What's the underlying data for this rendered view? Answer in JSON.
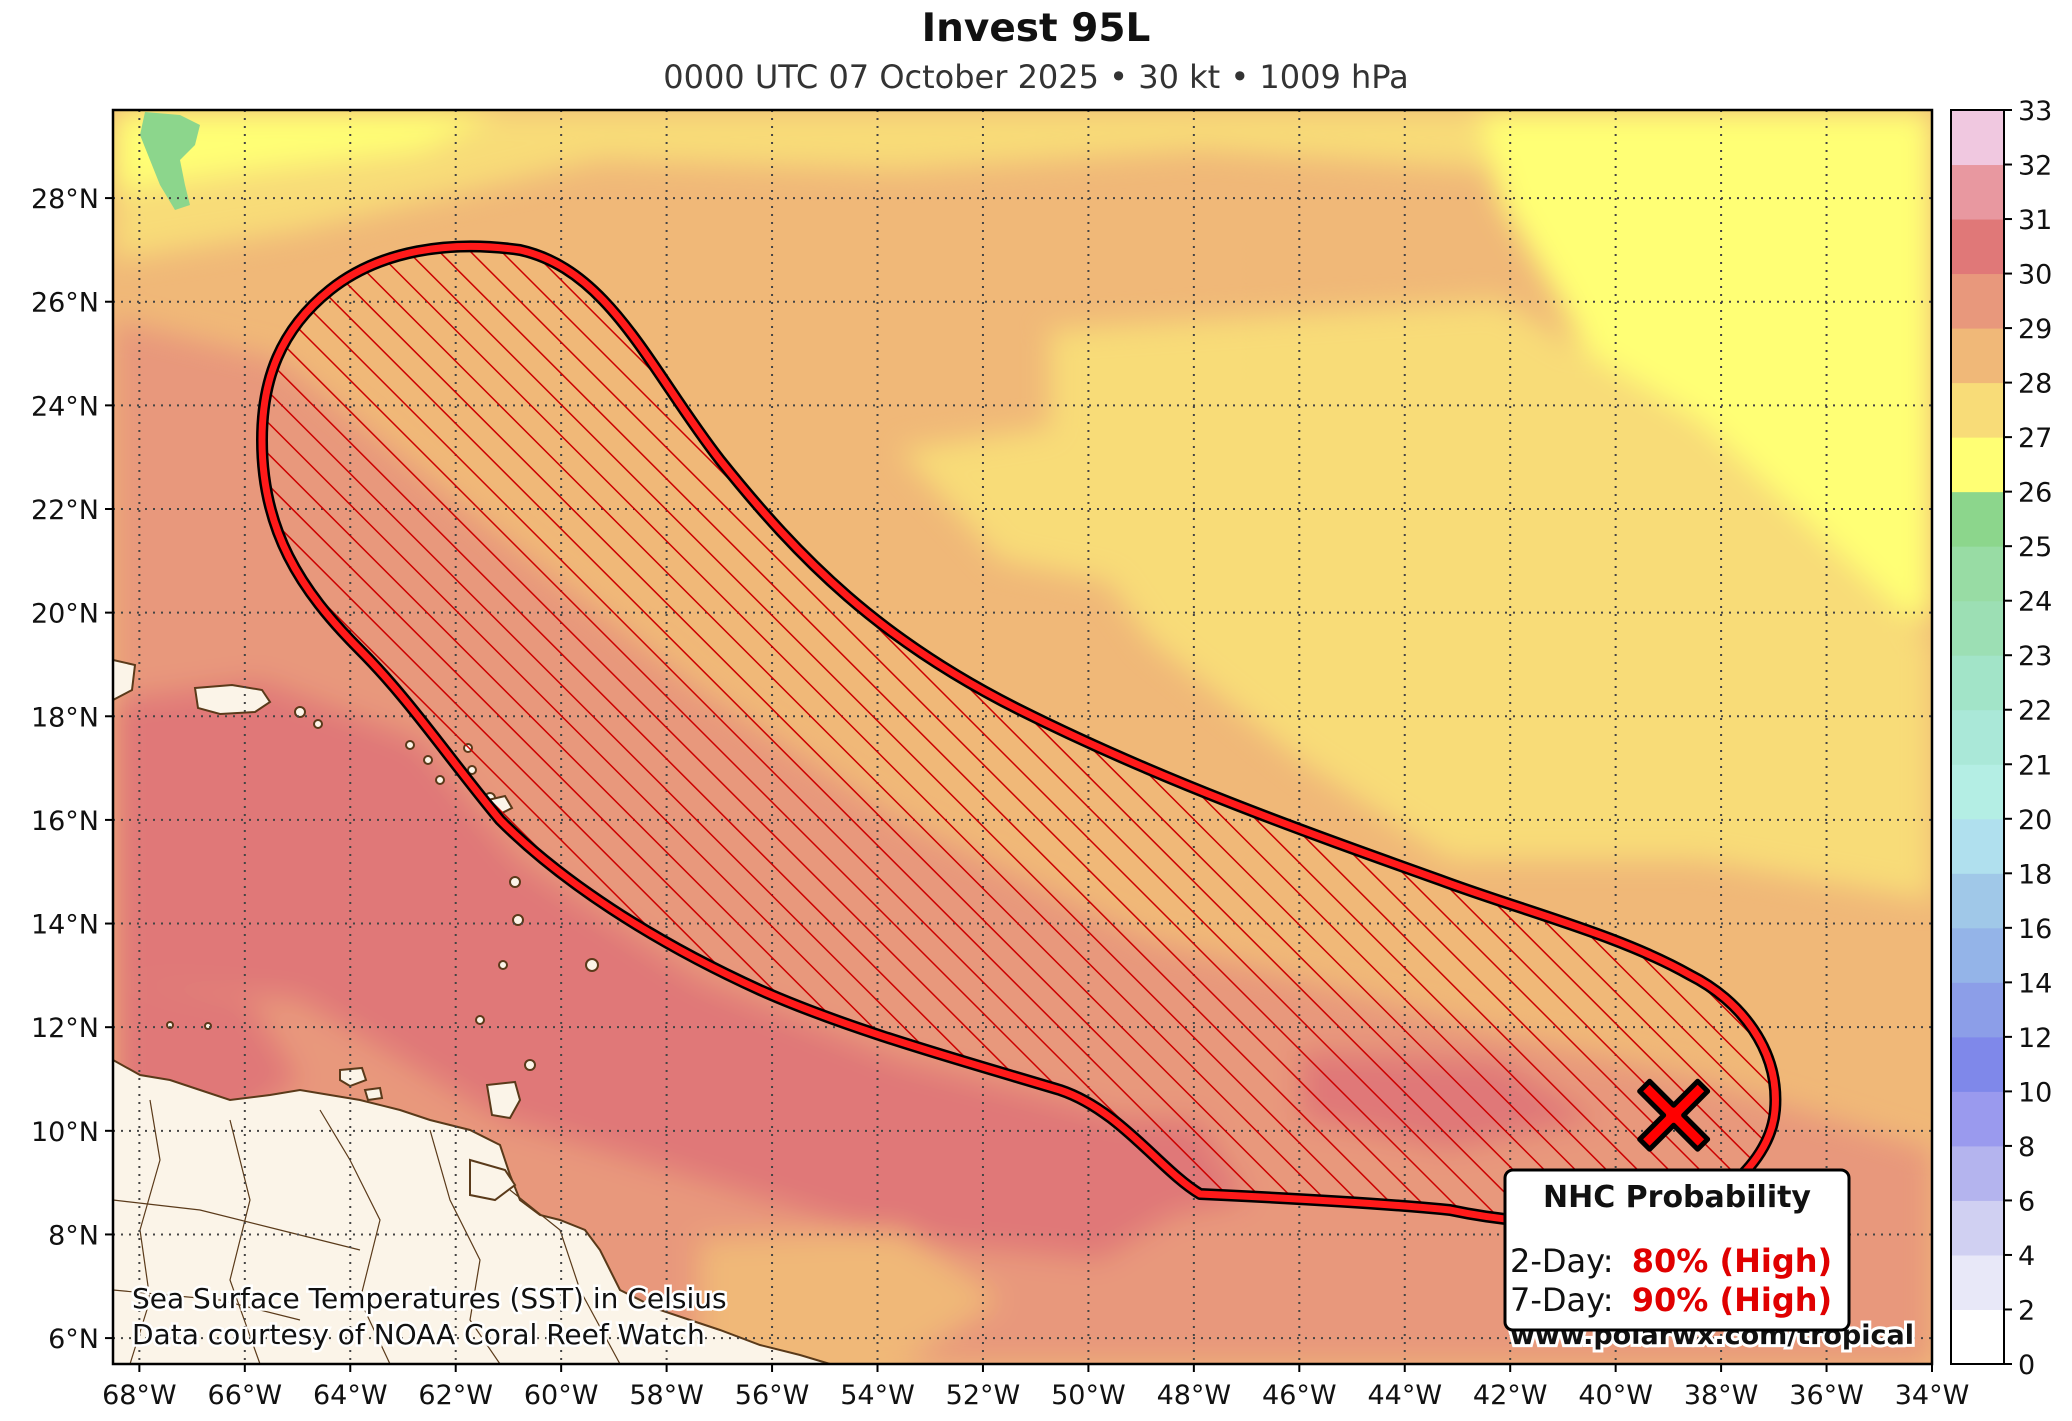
{
  "title": "Invest 95L",
  "subtitle": "0000 UTC 07 October 2025 • 30 kt • 1009 hPa",
  "map": {
    "lon_range": [
      -68.5,
      -34
    ],
    "lat_range": [
      5.5,
      29.7
    ],
    "lon_ticks": [
      "68°W",
      "66°W",
      "64°W",
      "62°W",
      "60°W",
      "58°W",
      "56°W",
      "54°W",
      "52°W",
      "50°W",
      "48°W",
      "46°W",
      "44°W",
      "42°W",
      "40°W",
      "38°W",
      "36°W",
      "34°W"
    ],
    "lat_ticks": [
      "6°N",
      "8°N",
      "10°N",
      "12°N",
      "14°N",
      "16°N",
      "18°N",
      "20°N",
      "22°N",
      "24°N",
      "26°N",
      "28°N"
    ],
    "gridlines": true,
    "storm_marker": {
      "lon": -38.9,
      "lat": 10.3,
      "symbol": "x-marker-icon",
      "color": "#ff0000"
    },
    "outlook_area": {
      "color": "#ff0000",
      "hatch": "diagonal"
    }
  },
  "colorbar": {
    "ticks": [
      "0",
      "2",
      "4",
      "6",
      "8",
      "10",
      "12",
      "14",
      "16",
      "18",
      "20",
      "21",
      "22",
      "23",
      "24",
      "25",
      "26",
      "27",
      "28",
      "29",
      "30",
      "31",
      "32",
      "33"
    ],
    "colors": [
      "#ffffff",
      "#e8e8f8",
      "#d0d0f2",
      "#b4b4ee",
      "#9a9aee",
      "#7f88ea",
      "#8c9ee8",
      "#94b4e8",
      "#a0c8e8",
      "#b0e0ee",
      "#b4eee4",
      "#aae8d8",
      "#a2e4c8",
      "#9cdfb4",
      "#98dca4",
      "#8cd68c",
      "#ffff74",
      "#f8dc78",
      "#f0b878",
      "#e8987c",
      "#e07878",
      "#e898a0",
      "#f0c8e0"
    ]
  },
  "legend": {
    "title": "NHC Probability",
    "rows": [
      {
        "label": "2-Day:",
        "value": "80% (High)"
      },
      {
        "label": "7-Day:",
        "value": "90% (High)"
      }
    ]
  },
  "credits": {
    "line1": "Sea Surface Temperatures (SST) in Celsius",
    "line2": "Data courtesy of NOAA Coral Reef Watch",
    "website": "www.polarwx.com/tropical"
  }
}
